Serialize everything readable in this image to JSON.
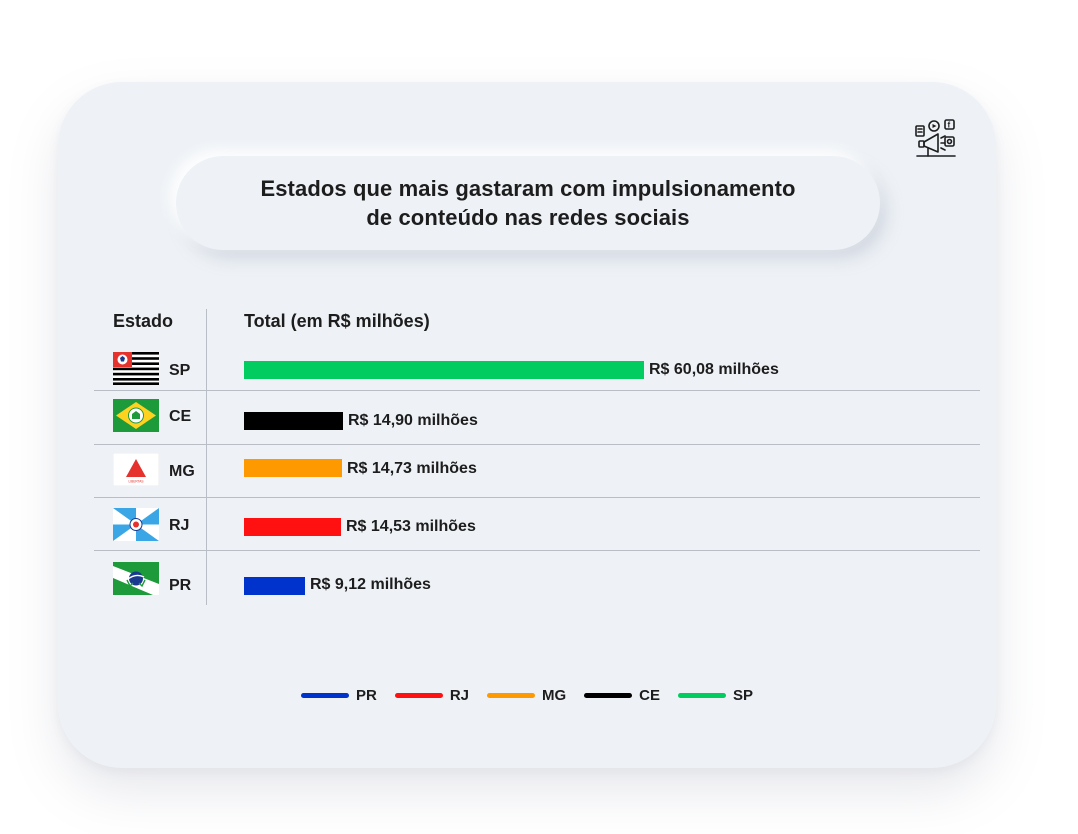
{
  "chart_data": {
    "type": "bar",
    "orientation": "horizontal",
    "title": "Estados que mais gastaram com impulsionamento de conteúdo nas redes sociais",
    "title_lines": [
      "Estados que mais gastaram com impulsionamento",
      "de conteúdo nas redes sociais"
    ],
    "column_headers": {
      "state": "Estado",
      "total": "Total (em R$ milhões)"
    },
    "categories": [
      "SP",
      "CE",
      "MG",
      "RJ",
      "PR"
    ],
    "values": [
      60.08,
      14.9,
      14.73,
      14.53,
      9.12
    ],
    "value_labels": [
      "R$ 60,08 milhões",
      "R$ 14,90 milhões",
      "R$ 14,73 milhões",
      "R$ 14,53 milhões",
      "R$ 9,12 milhões"
    ],
    "colors": [
      "#00cc5f",
      "#000000",
      "#ff9900",
      "#ff1111",
      "#0033cc"
    ],
    "xlim": [
      0,
      60.08
    ],
    "grid": false,
    "legend": {
      "placement": "bottom",
      "order": [
        "PR",
        "RJ",
        "MG",
        "CE",
        "SP"
      ],
      "colors": [
        "#0033cc",
        "#ff1111",
        "#ff9900",
        "#000000",
        "#00cc5f"
      ]
    }
  },
  "icons": {
    "corner": "social-media-marketing-icon",
    "flags": [
      "flag-sp-icon",
      "flag-ce-icon",
      "flag-mg-icon",
      "flag-rj-icon",
      "flag-pr-icon"
    ]
  }
}
